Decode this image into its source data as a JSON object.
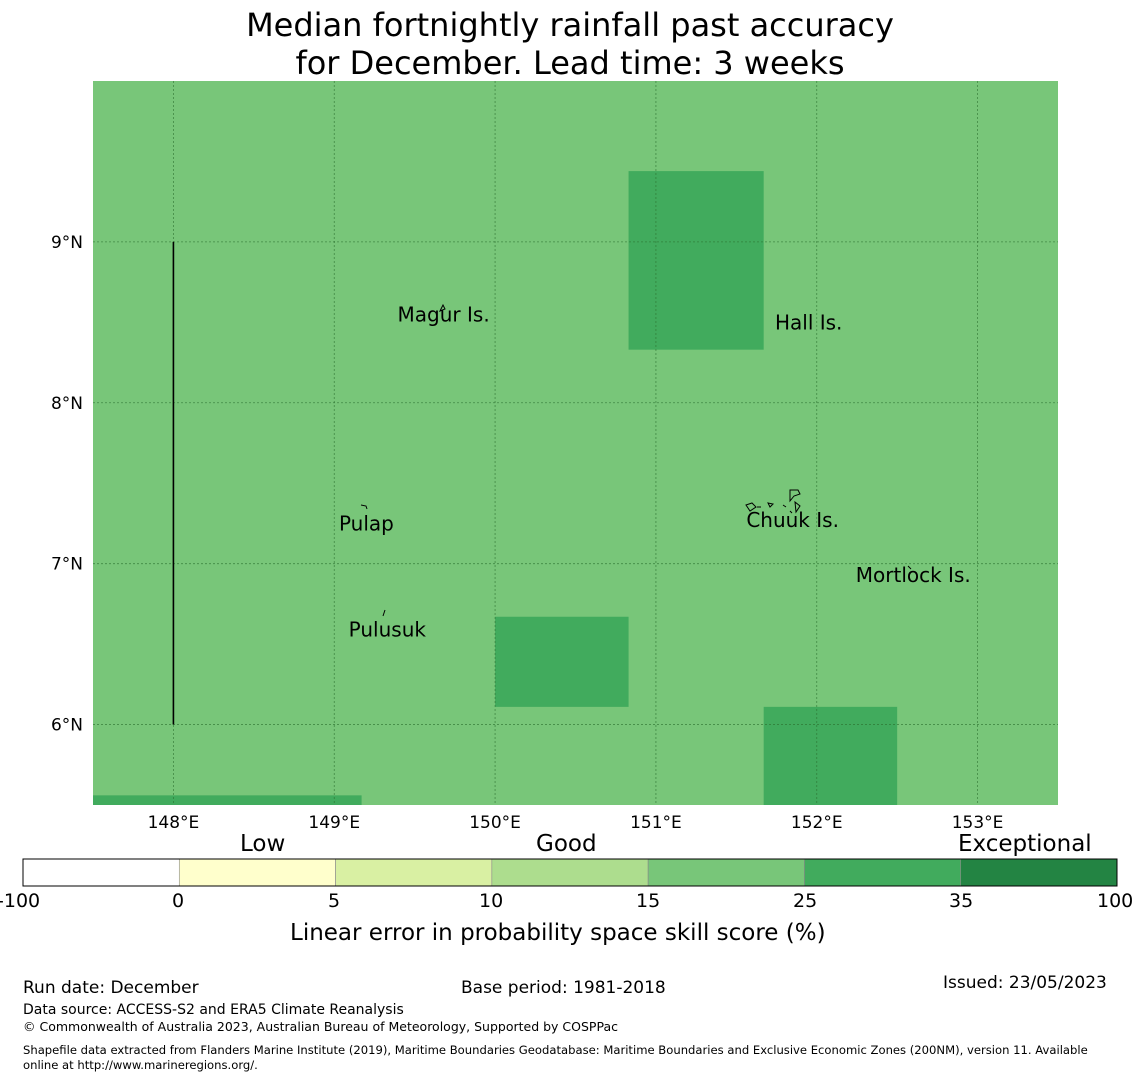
{
  "title": {
    "line1": "Median fortnightly rainfall past accuracy",
    "line2": "for December. Lead time: 3 weeks"
  },
  "map": {
    "background_color": "#78c679",
    "lon_ticks": [
      "148°E",
      "149°E",
      "150°E",
      "151°E",
      "152°E",
      "153°E"
    ],
    "lat_ticks": [
      "9°N",
      "8°N",
      "7°N",
      "6°N"
    ],
    "lon_values": [
      148,
      149,
      150,
      151,
      152,
      153
    ],
    "lat_values": [
      9,
      8,
      7,
      6
    ],
    "lon_range": [
      147.5,
      153.5
    ],
    "lat_range": [
      5.5,
      10.0
    ],
    "skill_cells": [
      {
        "lon_min": 150.83,
        "lon_max": 151.67,
        "lat_min": 8.33,
        "lat_max": 9.44,
        "category": "25-35",
        "color": "#41ab5d"
      },
      {
        "lon_min": 150.0,
        "lon_max": 150.83,
        "lat_min": 6.11,
        "lat_max": 6.67,
        "category": "25-35",
        "color": "#41ab5d"
      },
      {
        "lon_min": 151.67,
        "lon_max": 152.5,
        "lat_min": 5.5,
        "lat_max": 6.11,
        "category": "25-35",
        "color": "#41ab5d"
      },
      {
        "lon_min": 147.5,
        "lon_max": 149.17,
        "lat_min": 5.5,
        "lat_max": 5.56,
        "category": "25-35",
        "color": "#41ab5d"
      }
    ],
    "boundary_line": {
      "lon": 148.0,
      "lat_from": 6.0,
      "lat_to": 9.0
    },
    "places": [
      {
        "name": "Magur Is.",
        "lon": 149.68,
        "lat": 8.55
      },
      {
        "name": "Hall Is.",
        "lon": 151.95,
        "lat": 8.5
      },
      {
        "name": "Pulap",
        "lon": 149.2,
        "lat": 7.25
      },
      {
        "name": "Chuuk Is.",
        "lon": 151.85,
        "lat": 7.27
      },
      {
        "name": "Mortlock Is.",
        "lon": 152.6,
        "lat": 6.93
      },
      {
        "name": "Pulusuk",
        "lon": 149.33,
        "lat": 6.59
      }
    ]
  },
  "colorbar": {
    "categories": [
      "Low",
      "Good",
      "Exceptional"
    ],
    "tick_labels": [
      "-100",
      "0",
      "5",
      "10",
      "15",
      "25",
      "35",
      "100"
    ],
    "colors": [
      "#ffffff",
      "#ffffcc",
      "#d9f0a3",
      "#addd8e",
      "#78c679",
      "#41ab5d",
      "#238443"
    ],
    "title": "Linear error in probability space skill score (%)"
  },
  "footer": {
    "run_date": "Run date: December",
    "base_period": "Base period: 1981-2018",
    "issued": "Issued: 23/05/2023",
    "data_source": "Data source: ACCESS-S2 and ERA5 Climate Reanalysis",
    "copyright": "© Commonwealth of Australia 2023, Australian Bureau of Meteorology, Supported by COSPPac",
    "shapefile_line1": "Shapefile data extracted from Flanders Marine Institute (2019), Maritime Boundaries Geodatabase: Maritime Boundaries and Exclusive Economic Zones (200NM), version 11. Available",
    "shapefile_line2": "online at http://www.marineregions.org/."
  }
}
